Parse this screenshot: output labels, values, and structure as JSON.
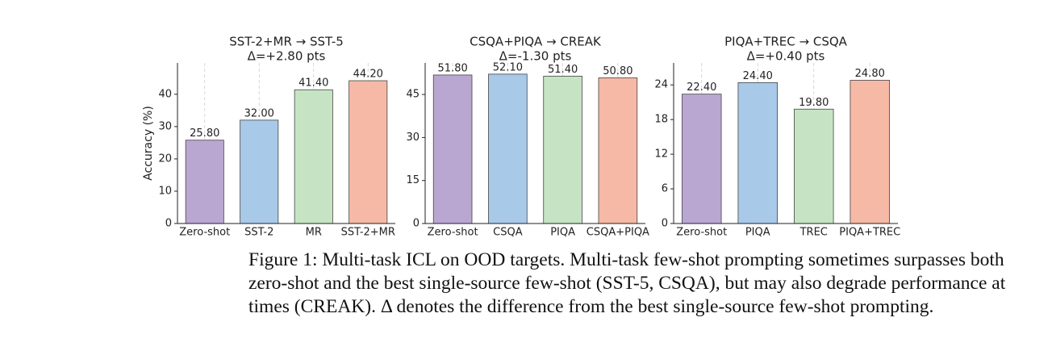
{
  "chart_data": [
    {
      "type": "bar",
      "title": "SST-2+MR → SST-5",
      "subtitle": "Δ=+2.80 pts",
      "ylabel": "Accuracy (%)",
      "categories": [
        "Zero-shot",
        "SST-2",
        "MR",
        "SST-2+MR"
      ],
      "values": [
        25.8,
        32.0,
        41.4,
        44.2
      ],
      "value_labels": [
        "25.80",
        "32.00",
        "41.40",
        "44.20"
      ],
      "colors": [
        "#b9a7d1",
        "#a9c9e8",
        "#c6e4c4",
        "#f5b9a6"
      ],
      "ylim": [
        0,
        49.7
      ],
      "yticks": [
        0,
        10,
        20,
        30,
        40
      ],
      "grid": true
    },
    {
      "type": "bar",
      "title": "CSQA+PIQA → CREAK",
      "subtitle": "Δ=-1.30 pts",
      "categories": [
        "Zero-shot",
        "CSQA",
        "PIQA",
        "CSQA+PIQA"
      ],
      "values": [
        51.8,
        52.1,
        51.4,
        50.8
      ],
      "value_labels": [
        "51.80",
        "52.10",
        "51.40",
        "50.80"
      ],
      "colors": [
        "#b9a7d1",
        "#a9c9e8",
        "#c6e4c4",
        "#f5b9a6"
      ],
      "ylim": [
        0,
        56
      ],
      "yticks": [
        0,
        15,
        30,
        45
      ],
      "grid": true
    },
    {
      "type": "bar",
      "title": "PIQA+TREC → CSQA",
      "subtitle": "Δ=+0.40 pts",
      "categories": [
        "Zero-shot",
        "PIQA",
        "TREC",
        "PIQA+TREC"
      ],
      "values": [
        22.4,
        24.4,
        19.8,
        24.8
      ],
      "value_labels": [
        "22.40",
        "24.40",
        "19.80",
        "24.80"
      ],
      "colors": [
        "#b9a7d1",
        "#a9c9e8",
        "#c6e4c4",
        "#f5b9a6"
      ],
      "ylim": [
        0,
        27.8
      ],
      "yticks": [
        0,
        6,
        12,
        18,
        24
      ],
      "grid": true
    }
  ],
  "caption": {
    "lines": [
      "Figure 1: Multi-task ICL on OOD targets. Multi-task few-shot prompting sometimes surpasses both",
      "zero-shot and the best single-source few-shot (SST-5, CSQA), but may also degrade performance at",
      "times (CREAK). Δ denotes the difference from the best single-source few-shot prompting."
    ]
  }
}
